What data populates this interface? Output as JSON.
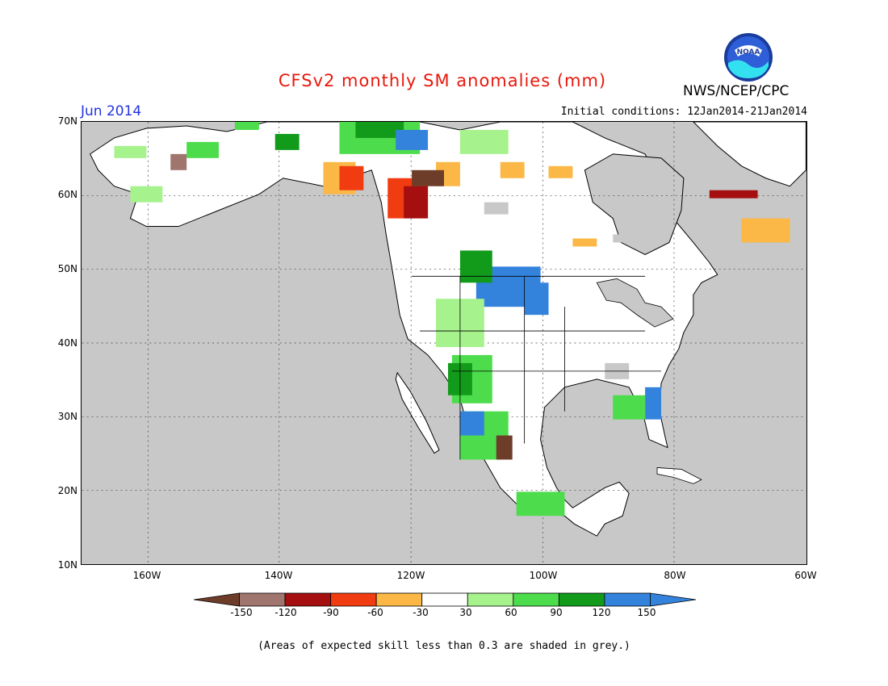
{
  "title": "CFSv2 monthly SM anomalies (mm)",
  "month_label": "Jun 2014",
  "initial_conditions": "Initial conditions: 12Jan2014-21Jan2014",
  "agency": "NWS/NCEP/CPC",
  "logo_text": "NOAA",
  "lat_labels": [
    "70N",
    "60N",
    "50N",
    "40N",
    "30N",
    "20N",
    "10N"
  ],
  "lon_labels": [
    "160W",
    "140W",
    "120W",
    "100W",
    "80W",
    "60W"
  ],
  "legend": {
    "labels": [
      "-150",
      "-120",
      "-90",
      "-60",
      "-30",
      "30",
      "60",
      "90",
      "120",
      "150"
    ],
    "colors": [
      "#6e3d2a",
      "#a0756e",
      "#a50f0f",
      "#f03c10",
      "#fbb846",
      "#ffffff",
      "#a6f28d",
      "#4ddc4c",
      "#129b1b",
      "#3383dd",
      "#3383dd"
    ]
  },
  "note": "(Areas of expected skill less than 0.3 are shaded in grey.)",
  "colors": {
    "ocean": "#c8c8c8",
    "land": "#ffffff",
    "title": "#e8180c",
    "month": "#2233dd"
  },
  "map_extent": {
    "lon": [
      -170,
      -60
    ],
    "lat": [
      10,
      70
    ]
  }
}
